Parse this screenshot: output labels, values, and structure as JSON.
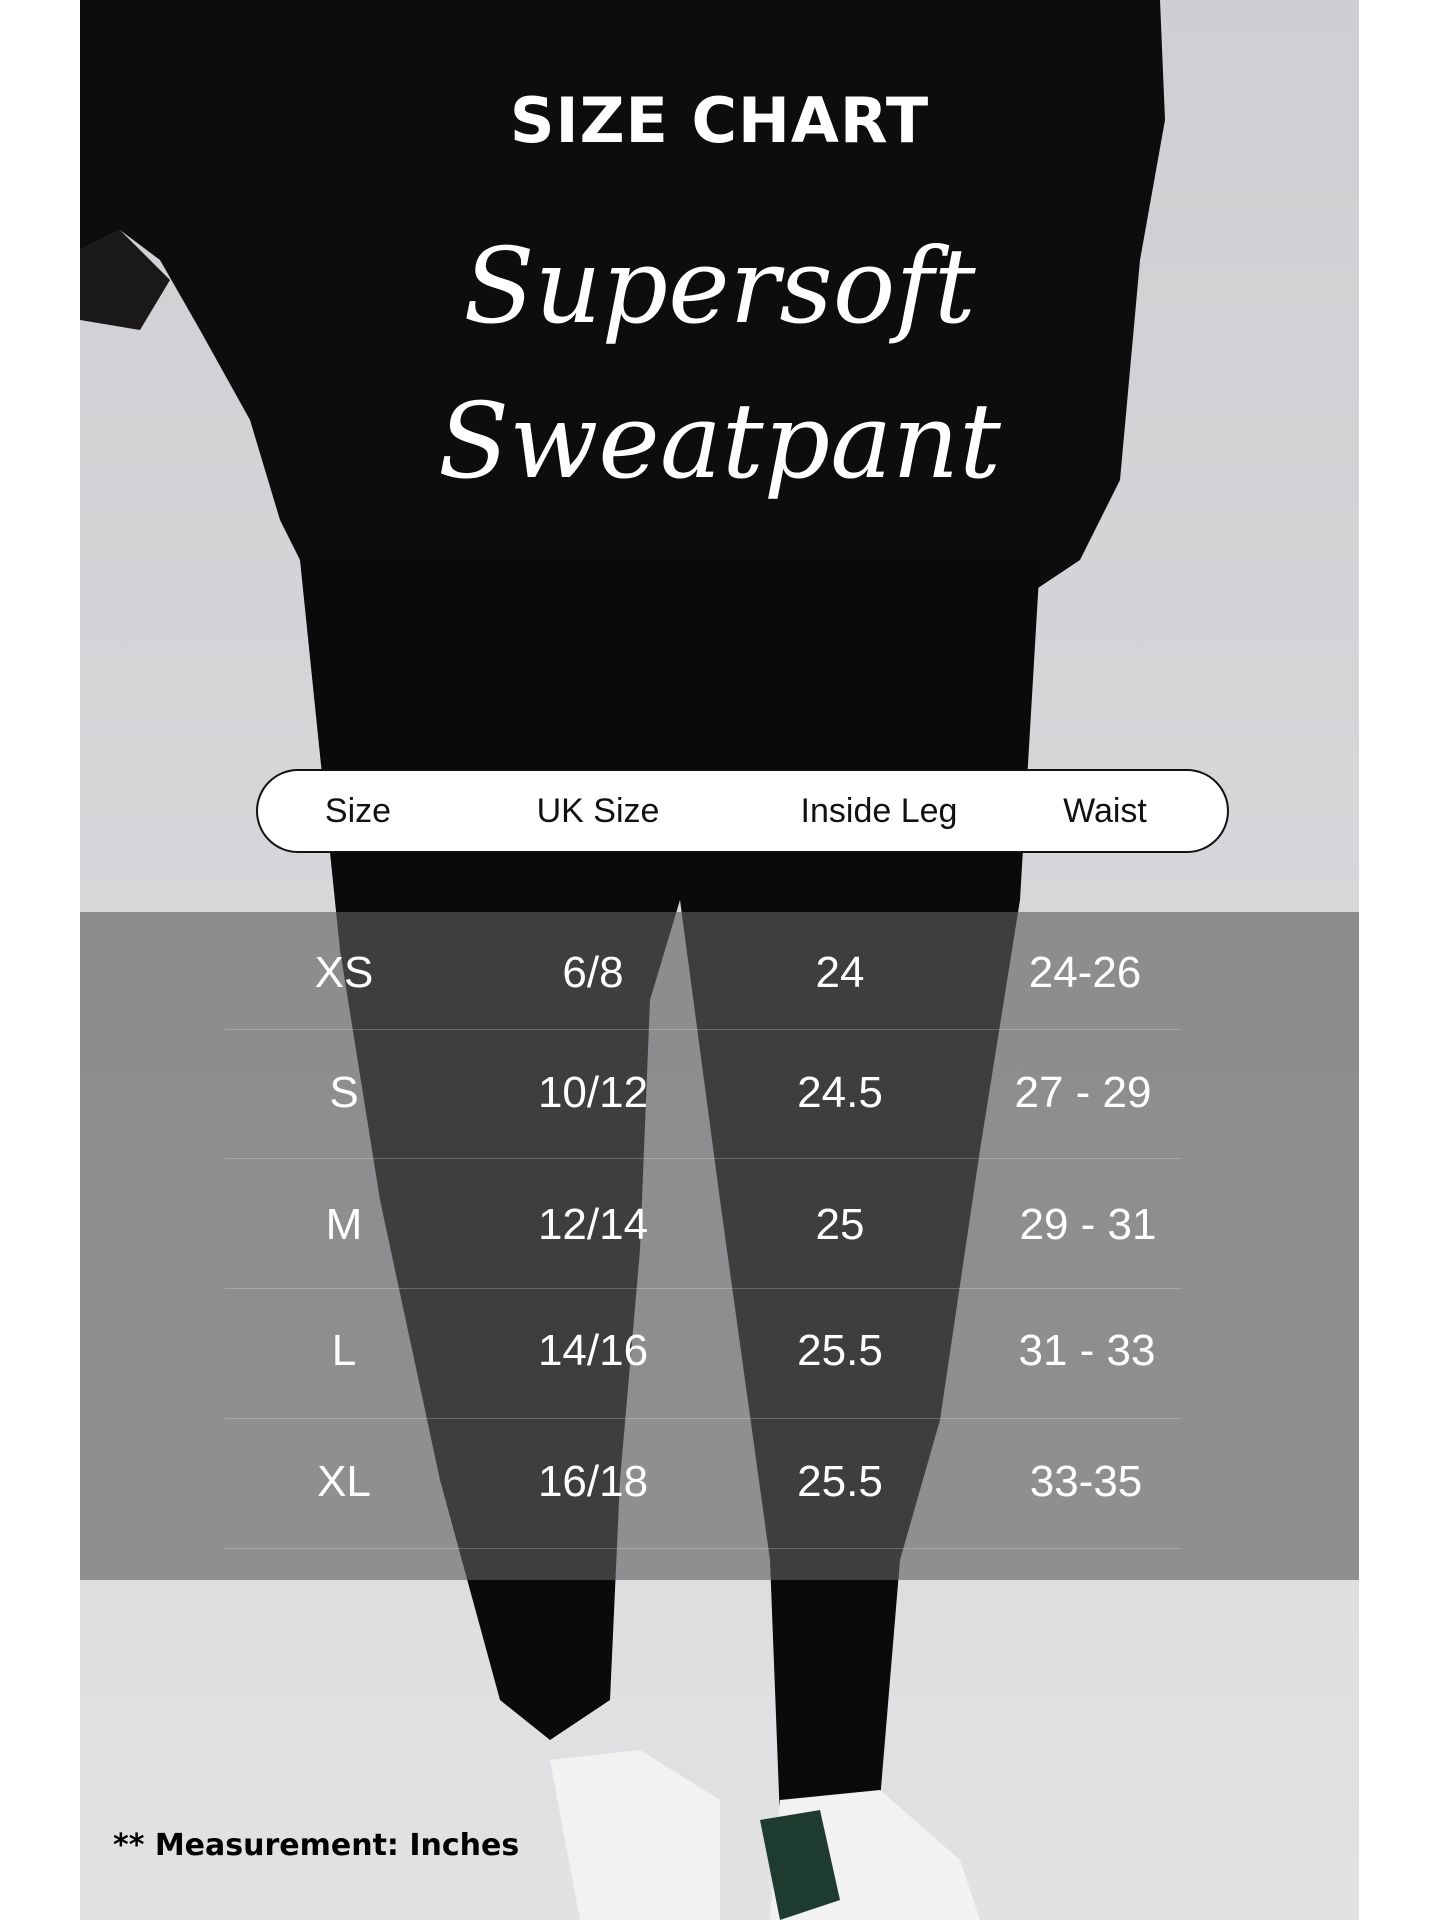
{
  "title": "SIZE CHART",
  "script_title": [
    "Supersoft",
    "Sweatpant"
  ],
  "table": {
    "headers": [
      "Size",
      "UK Size",
      "Inside Leg",
      "Waist"
    ],
    "rows": [
      [
        "XS",
        "6/8",
        "24",
        "24-26"
      ],
      [
        "S",
        "10/12",
        "24.5",
        "27 - 29"
      ],
      [
        "M",
        "12/14",
        "25",
        "29 - 31"
      ],
      [
        "L",
        "14/16",
        "25.5",
        "31 - 33"
      ],
      [
        "XL",
        "16/18",
        "25.5",
        "33-35"
      ]
    ]
  },
  "footnote": "** Measurement: Inches",
  "colors": {
    "band": "#5f5f61",
    "garment": "#0d0c0c",
    "background": "#d6d6d9"
  }
}
